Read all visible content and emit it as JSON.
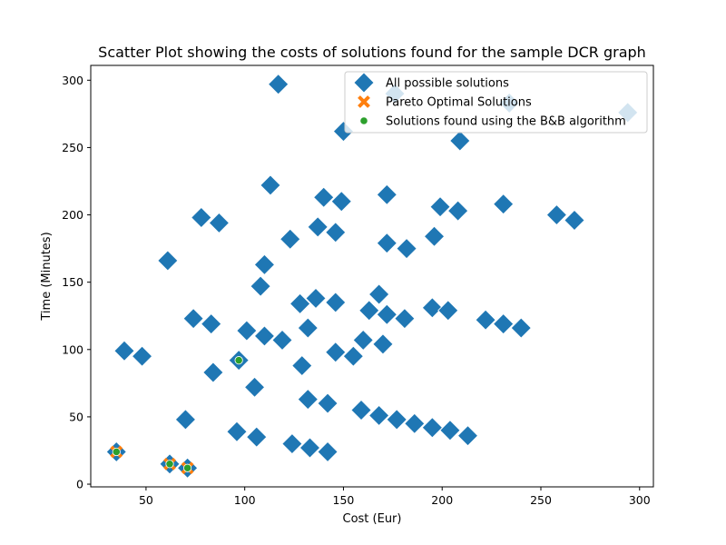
{
  "chart_data": {
    "type": "scatter",
    "title": "Scatter Plot showing the costs of solutions found for the sample DCR graph",
    "xlabel": "Cost (Eur)",
    "ylabel": "Time (Minutes)",
    "xlim": [
      22,
      307
    ],
    "ylim": [
      -2,
      311
    ],
    "xticks": [
      50,
      100,
      150,
      200,
      250,
      300
    ],
    "yticks": [
      0,
      50,
      100,
      150,
      200,
      250,
      300
    ],
    "grid": false,
    "legend_position": "top-right",
    "series": [
      {
        "name": "All possible solutions",
        "marker": "diamond",
        "color": "#1f77b4",
        "points": [
          [
            35,
            24
          ],
          [
            62,
            15
          ],
          [
            71,
            12
          ],
          [
            39,
            99
          ],
          [
            48,
            95
          ],
          [
            61,
            166
          ],
          [
            70,
            48
          ],
          [
            74,
            123
          ],
          [
            78,
            198
          ],
          [
            83,
            119
          ],
          [
            84,
            83
          ],
          [
            87,
            194
          ],
          [
            97,
            92
          ],
          [
            96,
            39
          ],
          [
            101,
            114
          ],
          [
            105,
            72
          ],
          [
            106,
            35
          ],
          [
            108,
            147
          ],
          [
            110,
            163
          ],
          [
            110,
            110
          ],
          [
            113,
            222
          ],
          [
            117,
            297
          ],
          [
            119,
            107
          ],
          [
            123,
            182
          ],
          [
            124,
            30
          ],
          [
            128,
            134
          ],
          [
            129,
            88
          ],
          [
            132,
            63
          ],
          [
            132,
            116
          ],
          [
            133,
            27
          ],
          [
            136,
            138
          ],
          [
            137,
            191
          ],
          [
            140,
            213
          ],
          [
            142,
            60
          ],
          [
            142,
            24
          ],
          [
            146,
            187
          ],
          [
            146,
            98
          ],
          [
            146,
            135
          ],
          [
            149,
            210
          ],
          [
            150,
            262
          ],
          [
            155,
            95
          ],
          [
            159,
            55
          ],
          [
            160,
            107
          ],
          [
            163,
            129
          ],
          [
            168,
            141
          ],
          [
            168,
            51
          ],
          [
            170,
            104
          ],
          [
            172,
            215
          ],
          [
            172,
            179
          ],
          [
            172,
            126
          ],
          [
            176,
            290
          ],
          [
            177,
            48
          ],
          [
            181,
            123
          ],
          [
            182,
            175
          ],
          [
            186,
            45
          ],
          [
            195,
            42
          ],
          [
            195,
            131
          ],
          [
            196,
            184
          ],
          [
            199,
            206
          ],
          [
            203,
            129
          ],
          [
            204,
            40
          ],
          [
            208,
            203
          ],
          [
            209,
            255
          ],
          [
            213,
            36
          ],
          [
            222,
            122
          ],
          [
            231,
            208
          ],
          [
            231,
            119
          ],
          [
            234,
            283
          ],
          [
            240,
            116
          ],
          [
            258,
            200
          ],
          [
            267,
            196
          ],
          [
            294,
            276
          ]
        ]
      },
      {
        "name": "Pareto Optimal Solutions",
        "marker": "x",
        "color": "#ff7f0e",
        "points": [
          [
            35,
            24
          ],
          [
            62,
            15
          ],
          [
            71,
            12
          ]
        ]
      },
      {
        "name": "Solutions found using the B&B algorithm",
        "marker": "dot",
        "color": "#2ca02c",
        "points": [
          [
            35,
            24
          ],
          [
            62,
            15
          ],
          [
            71,
            12
          ],
          [
            97,
            92
          ]
        ]
      }
    ]
  }
}
